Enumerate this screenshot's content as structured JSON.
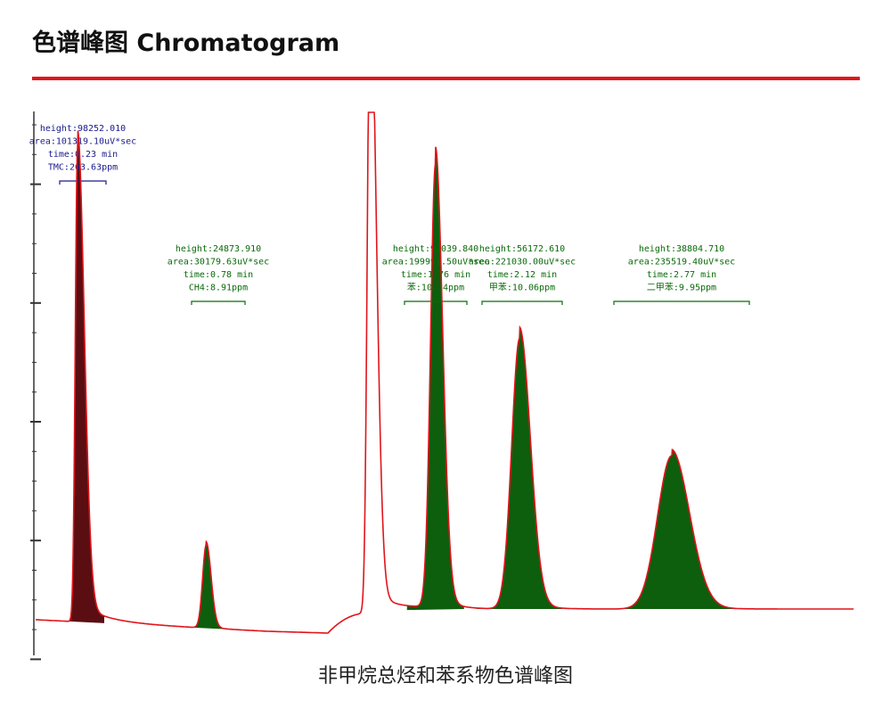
{
  "header": {
    "title": "色谱峰图 Chromatogram"
  },
  "caption": "非甲烷总烃和苯系物色谱峰图",
  "colors": {
    "accent": "#e3141b",
    "trace": "#e0151b",
    "peak_fill_green": "#0d5e0d",
    "peak_fill_tmc": "#5a0e12",
    "label_blue": "#1a1a8c",
    "label_green": "#0a6a0a"
  },
  "chart_data": {
    "type": "line",
    "title": "",
    "xlabel": "",
    "ylabel": "",
    "x_unit": "min",
    "peaks": [
      {
        "name": "TMC",
        "time": 0.23,
        "height": 98252.01,
        "lines": [
          "height:98252.010",
          "area:101319.10uV*sec",
          "time:0.23 min",
          "TMC:263.63ppm"
        ],
        "color": "blue"
      },
      {
        "name": "CH4",
        "time": 0.78,
        "height": 24873.91,
        "lines": [
          "height:24873.910",
          "area:30179.63uV*sec",
          "time:0.78 min",
          "CH4:8.91ppm"
        ],
        "color": "green"
      },
      {
        "name": "苯",
        "time": 1.76,
        "height": 92039.84,
        "lines": [
          "height:92039.840",
          "area:199991.50uV*sec",
          "time:1.76 min",
          "苯:10.14ppm"
        ],
        "color": "green"
      },
      {
        "name": "甲苯",
        "time": 2.12,
        "height": 56172.61,
        "lines": [
          "height:56172.610",
          "area:221030.00uV*sec",
          "time:2.12 min",
          "甲苯:10.06ppm"
        ],
        "color": "green"
      },
      {
        "name": "二甲苯",
        "time": 2.77,
        "height": 38804.71,
        "lines": [
          "height:38804.710",
          "area:235519.40uV*sec",
          "time:2.77 min",
          "二甲苯:9.95ppm"
        ],
        "color": "green"
      }
    ],
    "unlabeled_peaks": [
      {
        "time": 1.48,
        "off_scale": true
      }
    ],
    "grid": false,
    "legend": "none"
  }
}
